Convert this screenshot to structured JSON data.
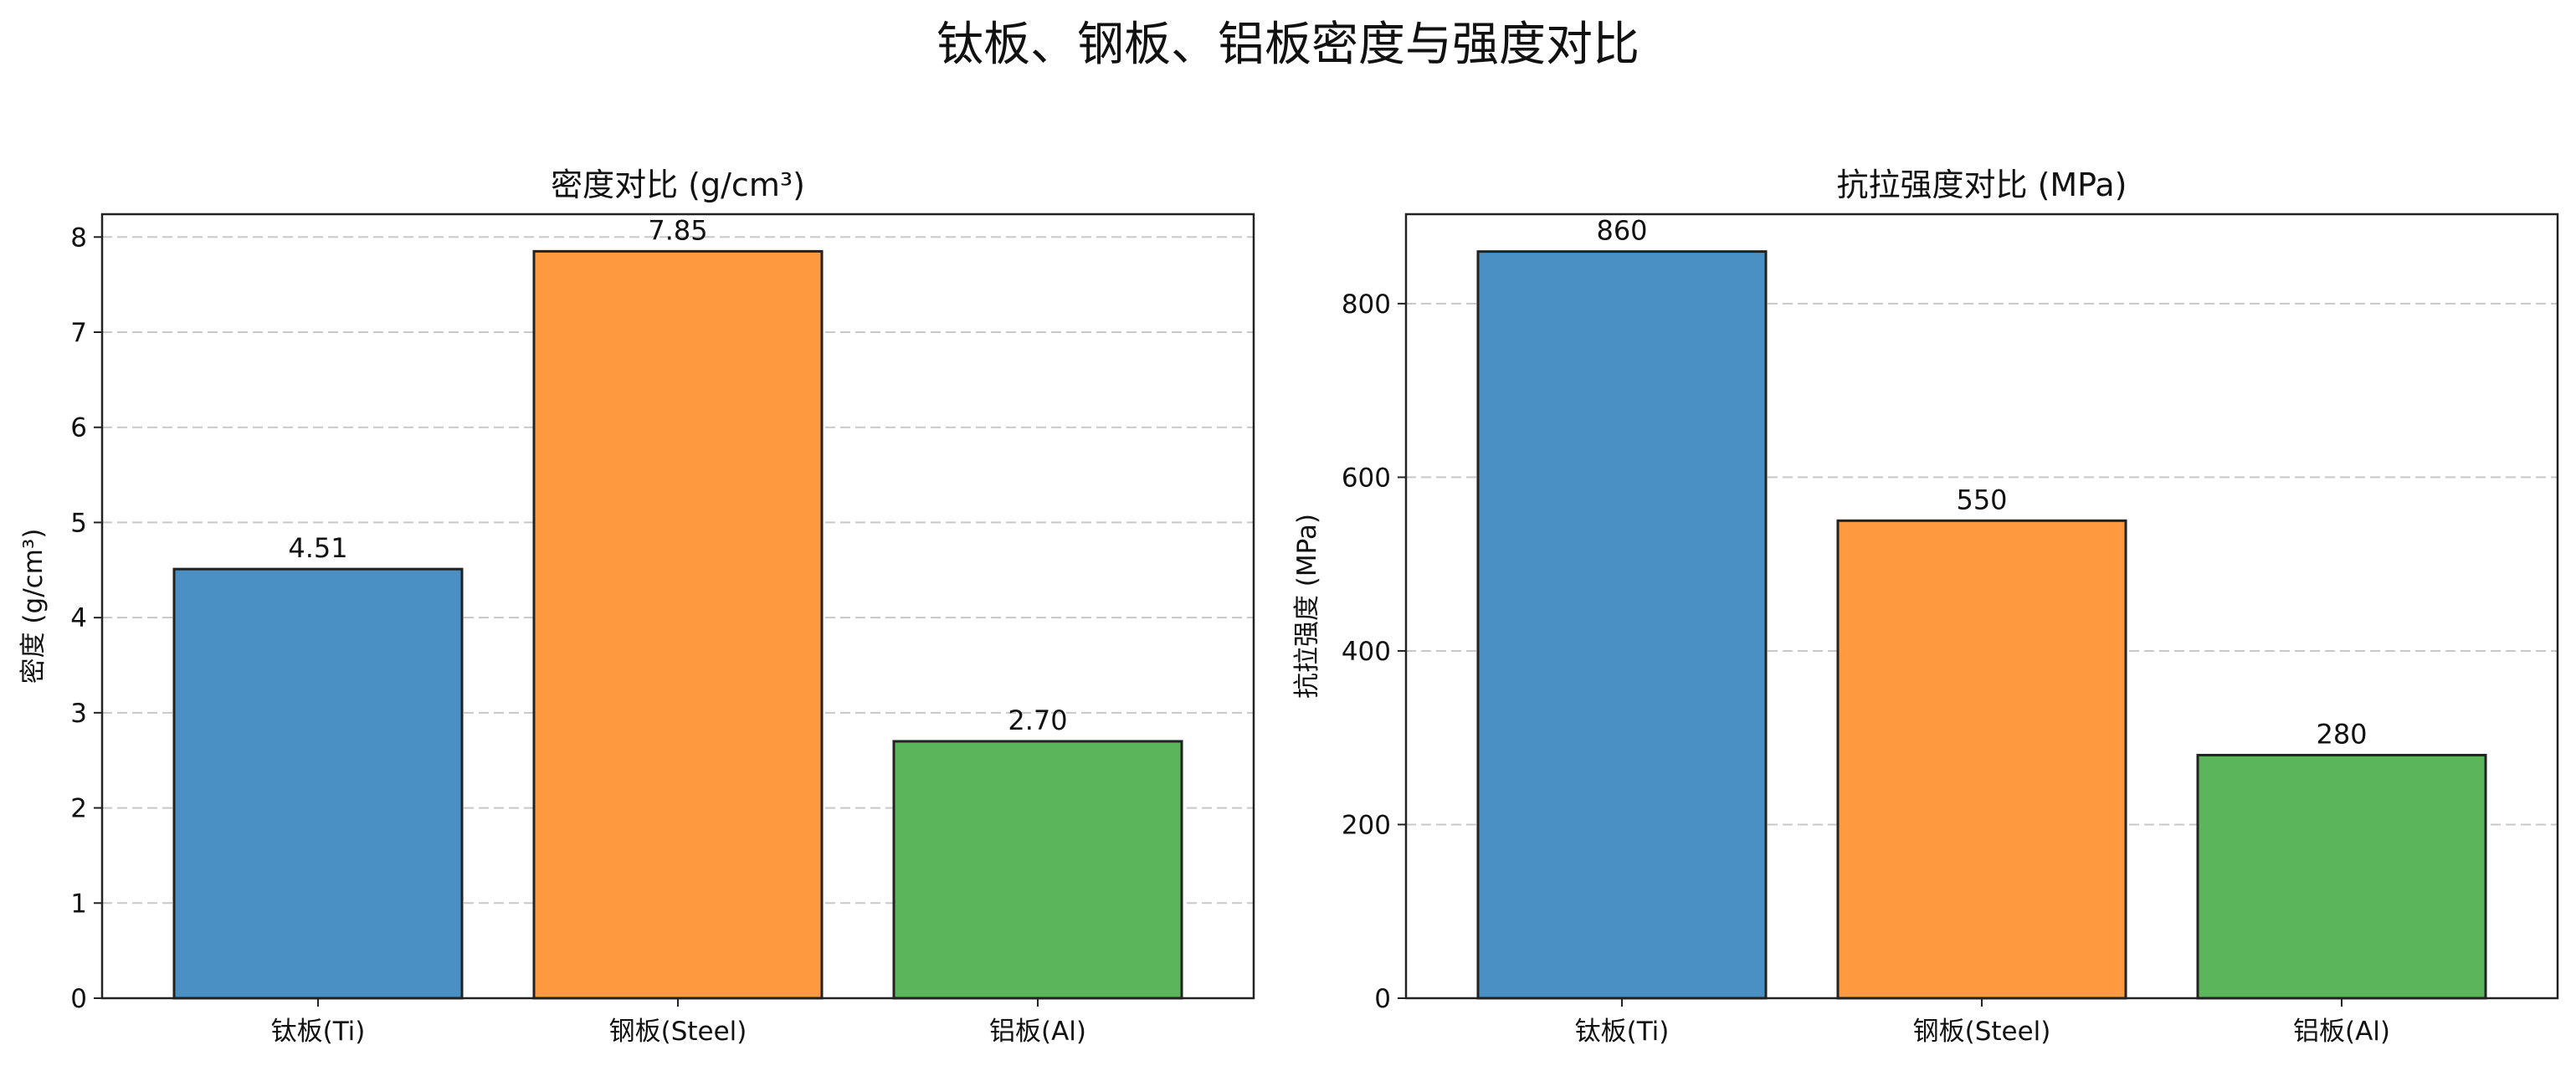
{
  "figure": {
    "title": "钛板、钢板、铝板密度与强度对比"
  },
  "colors": {
    "ti": "#4a90c4",
    "steel": "#ff9a40",
    "al": "#5bb55a",
    "edge": "#222222",
    "grid": "#c8c8c8"
  },
  "chart_data": [
    {
      "type": "bar",
      "title": "密度对比 (g/cm³)",
      "xlabel": "",
      "ylabel": "密度 (g/cm³)",
      "categories": [
        "钛板(Ti)",
        "钢板(Steel)",
        "铝板(Al)"
      ],
      "values": [
        4.51,
        7.85,
        2.7
      ],
      "value_labels": [
        "4.51",
        "7.85",
        "2.70"
      ],
      "ylim": [
        0,
        8.24
      ],
      "yticks": [
        0,
        1,
        2,
        3,
        4,
        5,
        6,
        7,
        8
      ],
      "grid": "y-dashed",
      "legend": "none"
    },
    {
      "type": "bar",
      "title": "抗拉强度对比 (MPa)",
      "xlabel": "",
      "ylabel": "抗拉强度 (MPa)",
      "categories": [
        "钛板(Ti)",
        "钢板(Steel)",
        "铝板(Al)"
      ],
      "values": [
        860,
        550,
        280
      ],
      "value_labels": [
        "860",
        "550",
        "280"
      ],
      "ylim": [
        0,
        903
      ],
      "yticks": [
        0,
        200,
        400,
        600,
        800
      ],
      "grid": "y-dashed",
      "legend": "none"
    }
  ]
}
